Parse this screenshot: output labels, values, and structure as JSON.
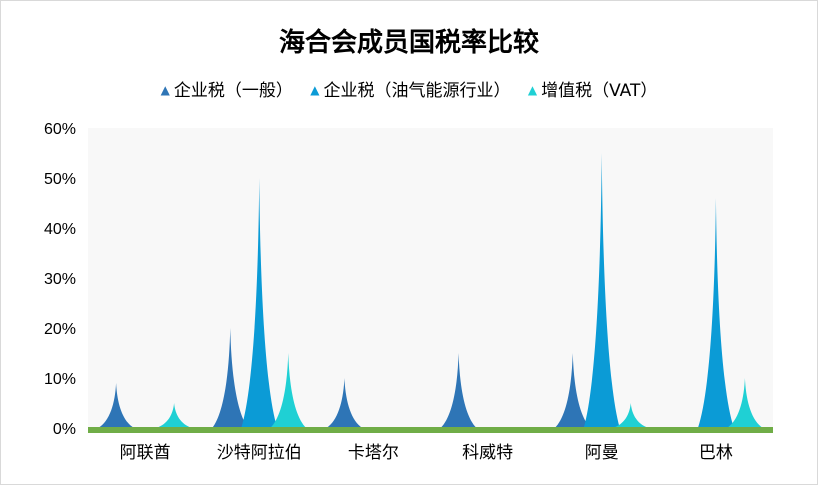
{
  "chart_data": {
    "type": "bar",
    "title": "海合会成员国税率比较",
    "categories": [
      "阿联酋",
      "沙特阿拉伯",
      "卡塔尔",
      "科威特",
      "阿曼",
      "巴林"
    ],
    "series": [
      {
        "name": "企业税（一般）",
        "color": "#2e75b6",
        "values": [
          9,
          20,
          10,
          15,
          15,
          0
        ]
      },
      {
        "name": "企业税（油气能源行业）",
        "color": "#0b9bd6",
        "values": [
          0,
          50,
          0,
          0,
          55,
          46
        ]
      },
      {
        "name": "增值税（VAT）",
        "color": "#1fd0d4",
        "values": [
          5,
          15,
          0,
          0,
          5,
          10
        ]
      }
    ],
    "y_ticks": [
      "0%",
      "10%",
      "20%",
      "30%",
      "40%",
      "50%",
      "60%"
    ],
    "ylim": [
      0,
      60
    ],
    "grid": false,
    "legend_position": "top",
    "plot_background": "#f8f8f8",
    "baseline_color": "#70ad47",
    "legend_marker": "▲"
  }
}
